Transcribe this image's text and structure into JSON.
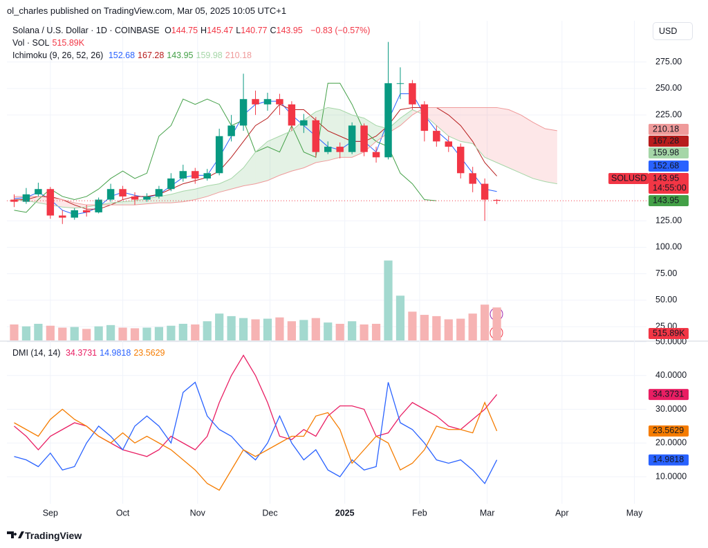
{
  "header": {
    "publisher": "ol_charles published on TradingView.com, Mar 05, 2025 10:05 UTC+1",
    "currency": "USD",
    "brand": "TradingView"
  },
  "chart_data": [
    {
      "type": "candlestick",
      "title": "Solana / U.S. Dollar · 1D · COINBASE",
      "symbol": "SOLUSD",
      "countdown": "14:55:00",
      "ohlc_letters": [
        "O",
        "H",
        "L",
        "C"
      ],
      "change": "−0.83 (−0.57%)",
      "x": [
        "2024-08-17",
        "2024-08-22",
        "2024-08-27",
        "2024-09-01",
        "2024-09-06",
        "2024-09-11",
        "2024-09-16",
        "2024-09-21",
        "2024-09-26",
        "2024-10-01",
        "2024-10-06",
        "2024-10-11",
        "2024-10-16",
        "2024-10-21",
        "2024-10-26",
        "2024-10-31",
        "2024-11-05",
        "2024-11-10",
        "2024-11-15",
        "2024-11-20",
        "2024-11-25",
        "2024-11-30",
        "2024-12-05",
        "2024-12-10",
        "2024-12-15",
        "2024-12-20",
        "2024-12-25",
        "2024-12-30",
        "2025-01-04",
        "2025-01-09",
        "2025-01-14",
        "2025-01-19",
        "2025-01-24",
        "2025-01-29",
        "2025-02-03",
        "2025-02-08",
        "2025-02-13",
        "2025-02-18",
        "2025-02-23",
        "2025-02-28",
        "2025-03-05"
      ],
      "open": [
        145,
        143,
        150,
        155,
        130,
        128,
        135,
        133,
        145,
        155,
        148,
        145,
        148,
        155,
        165,
        172,
        165,
        170,
        205,
        215,
        240,
        235,
        240,
        235,
        215,
        220,
        190,
        195,
        190,
        215,
        190,
        185,
        255,
        255,
        235,
        210,
        200,
        195,
        170,
        160,
        144.75
      ],
      "high": [
        150,
        156,
        161,
        157,
        135,
        137,
        140,
        147,
        160,
        158,
        152,
        151,
        158,
        170,
        178,
        175,
        174,
        212,
        225,
        264,
        248,
        246,
        245,
        238,
        226,
        223,
        200,
        199,
        218,
        217,
        195,
        294,
        270,
        258,
        238,
        215,
        205,
        198,
        176,
        165,
        145.47
      ],
      "low": [
        138,
        141,
        148,
        127,
        122,
        126,
        129,
        132,
        143,
        145,
        140,
        143,
        146,
        153,
        162,
        160,
        163,
        168,
        200,
        210,
        225,
        229,
        225,
        210,
        208,
        185,
        188,
        184,
        188,
        186,
        180,
        183,
        240,
        230,
        200,
        195,
        190,
        165,
        152,
        125,
        140.77
      ],
      "close": [
        143,
        150,
        155,
        130,
        128,
        135,
        133,
        145,
        155,
        148,
        145,
        148,
        155,
        165,
        172,
        165,
        170,
        205,
        215,
        240,
        235,
        240,
        235,
        215,
        220,
        190,
        195,
        190,
        215,
        190,
        185,
        255,
        255,
        235,
        210,
        200,
        195,
        170,
        160,
        145,
        143.95
      ],
      "up_color": "#089981",
      "down_color": "#f23645",
      "price_line_color": "#f23645",
      "xlim": [
        "2024-08-14",
        "2025-05-06"
      ],
      "ylim": [
        12,
        314
      ],
      "yticks": [
        {
          "value": 275,
          "label": "275.00"
        },
        {
          "value": 250,
          "label": "250.00"
        },
        {
          "value": 225,
          "label": "225.00"
        },
        {
          "value": 125,
          "label": "125.00"
        },
        {
          "value": 100,
          "label": "100.00"
        },
        {
          "value": 75,
          "label": "75.00"
        },
        {
          "value": 50,
          "label": "50.00"
        },
        {
          "value": 25,
          "label": "25.00"
        }
      ],
      "grid": true,
      "volume": {
        "name": "Vol · SOL",
        "last_label": "515.89K",
        "ylim": [
          0,
          5000000
        ],
        "up_color": "#a3d9cf",
        "down_color": "#f6b3b3",
        "values": [
          250000,
          220000,
          260000,
          230000,
          200000,
          210000,
          180000,
          220000,
          240000,
          200000,
          190000,
          200000,
          210000,
          230000,
          260000,
          250000,
          300000,
          420000,
          380000,
          350000,
          330000,
          340000,
          360000,
          300000,
          320000,
          350000,
          280000,
          260000,
          300000,
          250000,
          260000,
          1250000,
          700000,
          450000,
          400000,
          380000,
          330000,
          340000,
          420000,
          560000,
          515890
        ]
      },
      "ichimoku": {
        "name": "Ichimoku (9, 26, 52, 26)",
        "cloud_up": "rgba(67,160,71,0.14)",
        "cloud_down": "rgba(242,54,69,0.12)",
        "series": [
          {
            "color": "#2962ff",
            "values": [
              146,
              147,
              152,
              145,
              135,
              131,
              133,
              138,
              148,
              152,
              149,
              147,
              150,
              158,
              166,
              168,
              168,
              185,
              205,
              225,
              235,
              238,
              238,
              225,
              215,
              205,
              195,
              192,
              200,
              200,
              190,
              220,
              245,
              245,
              225,
              210,
              200,
              185,
              170,
              155,
              152.68
            ]
          },
          {
            "color": "#b71c1c",
            "values": [
              145,
              145,
              148,
              148,
              145,
              140,
              136,
              136,
              140,
              145,
              148,
              148,
              150,
              155,
              160,
              163,
              166,
              172,
              185,
              200,
              215,
              222,
              235,
              230,
              230,
              220,
              210,
              205,
              200,
              200,
              205,
              215,
              230,
              232,
              232,
              232,
              225,
              215,
              200,
              180,
              167.28
            ]
          },
          {
            "color": "#43a047",
            "x": [
              "2024-08-17",
              "2024-08-22",
              "2024-08-27",
              "2024-09-01",
              "2024-09-06",
              "2024-09-11",
              "2024-09-16",
              "2024-09-21",
              "2024-09-26",
              "2024-10-01",
              "2024-10-06",
              "2024-10-11",
              "2024-10-16",
              "2024-10-21",
              "2024-10-26",
              "2024-10-31",
              "2024-11-05",
              "2024-11-10",
              "2024-11-15",
              "2024-11-20",
              "2024-11-25",
              "2024-11-30",
              "2024-12-05",
              "2024-12-10",
              "2024-12-15",
              "2024-12-20",
              "2024-12-25",
              "2024-12-30",
              "2025-01-04",
              "2025-01-09",
              "2025-01-14",
              "2025-01-19",
              "2025-01-24",
              "2025-01-29",
              "2025-02-03",
              "2025-02-08"
            ],
            "values": [
              135,
              133,
              145,
              155,
              148,
              145,
              148,
              155,
              165,
              172,
              165,
              170,
              205,
              215,
              240,
              235,
              240,
              235,
              215,
              220,
              190,
              195,
              190,
              215,
              190,
              185,
              255,
              255,
              235,
              210,
              200,
              195,
              170,
              160,
              145,
              143.95
            ]
          },
          {
            "color": "#a5d6a7",
            "x": [
              "2024-08-17",
              "2024-08-22",
              "2024-08-27",
              "2024-09-01",
              "2024-09-06",
              "2024-09-11",
              "2024-09-16",
              "2024-09-21",
              "2024-09-26",
              "2024-10-01",
              "2024-10-06",
              "2024-10-11",
              "2024-10-16",
              "2024-10-21",
              "2024-10-26",
              "2024-10-31",
              "2024-11-05",
              "2024-11-10",
              "2024-11-15",
              "2024-11-20",
              "2024-11-25",
              "2024-11-30",
              "2024-12-05",
              "2024-12-10",
              "2024-12-15",
              "2024-12-20",
              "2024-12-25",
              "2024-12-30",
              "2025-01-04",
              "2025-01-09",
              "2025-01-14",
              "2025-01-19",
              "2025-01-24",
              "2025-01-29",
              "2025-02-03",
              "2025-02-08",
              "2025-02-13",
              "2025-02-18",
              "2025-02-23",
              "2025-02-28",
              "2025-03-05",
              "2025-03-10",
              "2025-03-15",
              "2025-03-20",
              "2025-03-25",
              "2025-03-30"
            ],
            "values": [
              145,
              144,
              142,
              140,
              138,
              137,
              138,
              140,
              142,
              143,
              144,
              146,
              148,
              150,
              153,
              155,
              158,
              160,
              165,
              175,
              190,
              200,
              205,
              210,
              220,
              228,
              232,
              230,
              225,
              222,
              215,
              212,
              222,
              230,
              225,
              215,
              205,
              200,
              198,
              185,
              180,
              175,
              170,
              165,
              162,
              159.98
            ]
          },
          {
            "color": "#ef9a9a",
            "x": [
              "2024-08-17",
              "2024-08-22",
              "2024-08-27",
              "2024-09-01",
              "2024-09-06",
              "2024-09-11",
              "2024-09-16",
              "2024-09-21",
              "2024-09-26",
              "2024-10-01",
              "2024-10-06",
              "2024-10-11",
              "2024-10-16",
              "2024-10-21",
              "2024-10-26",
              "2024-10-31",
              "2024-11-05",
              "2024-11-10",
              "2024-11-15",
              "2024-11-20",
              "2024-11-25",
              "2024-11-30",
              "2024-12-05",
              "2024-12-10",
              "2024-12-15",
              "2024-12-20",
              "2024-12-25",
              "2024-12-30",
              "2025-01-04",
              "2025-01-09",
              "2025-01-14",
              "2025-01-19",
              "2025-01-24",
              "2025-01-29",
              "2025-02-03",
              "2025-02-08",
              "2025-02-13",
              "2025-02-18",
              "2025-02-23",
              "2025-02-28",
              "2025-03-05",
              "2025-03-10",
              "2025-03-15",
              "2025-03-20",
              "2025-03-25",
              "2025-03-30"
            ],
            "values": [
              148,
              148,
              148,
              147,
              145,
              142,
              140,
              140,
              140,
              140,
              140,
              141,
              142,
              142,
              143,
              145,
              148,
              152,
              155,
              158,
              160,
              163,
              168,
              172,
              175,
              180,
              182,
              185,
              185,
              190,
              200,
              208,
              215,
              225,
              232,
              232,
              232,
              232,
              232,
              232,
              232,
              230,
              225,
              218,
              212,
              210.18
            ]
          }
        ]
      }
    },
    {
      "type": "line",
      "title": "DMI (14, 14)",
      "x": [
        "2024-08-17",
        "2024-08-22",
        "2024-08-27",
        "2024-09-01",
        "2024-09-06",
        "2024-09-11",
        "2024-09-16",
        "2024-09-21",
        "2024-09-26",
        "2024-10-01",
        "2024-10-06",
        "2024-10-11",
        "2024-10-16",
        "2024-10-21",
        "2024-10-26",
        "2024-10-31",
        "2024-11-05",
        "2024-11-10",
        "2024-11-15",
        "2024-11-20",
        "2024-11-25",
        "2024-11-30",
        "2024-12-05",
        "2024-12-10",
        "2024-12-15",
        "2024-12-20",
        "2024-12-25",
        "2024-12-30",
        "2025-01-04",
        "2025-01-09",
        "2025-01-14",
        "2025-01-19",
        "2025-01-24",
        "2025-01-29",
        "2025-02-03",
        "2025-02-08",
        "2025-02-13",
        "2025-02-18",
        "2025-02-23",
        "2025-02-28",
        "2025-03-05"
      ],
      "series": [
        {
          "color": "#e91e63",
          "values": [
            25,
            22,
            18,
            22,
            24,
            26,
            25,
            22,
            20,
            18,
            17,
            16,
            18,
            22,
            20,
            18,
            22,
            32,
            40,
            46,
            40,
            32,
            22,
            21,
            24,
            22,
            28,
            31,
            31,
            30,
            22,
            23,
            28,
            32,
            30,
            28,
            25,
            24,
            27,
            30,
            34.3731
          ]
        },
        {
          "color": "#2962ff",
          "values": [
            16,
            15,
            13,
            17,
            12,
            13,
            20,
            25,
            22,
            18,
            25,
            28,
            25,
            20,
            35,
            38,
            28,
            24,
            22,
            18,
            15,
            20,
            28,
            20,
            15,
            18,
            12,
            10,
            15,
            12,
            13,
            38,
            26,
            24,
            20,
            15,
            14,
            15,
            12,
            8,
            14.9818
          ]
        },
        {
          "color": "#f57c00",
          "values": [
            26,
            24,
            22,
            27,
            30,
            27,
            25,
            22,
            20,
            23,
            20,
            22,
            20,
            18,
            15,
            12,
            8,
            6,
            12,
            18,
            16,
            18,
            20,
            22,
            22,
            28,
            29,
            24,
            14,
            18,
            22,
            20,
            12,
            14,
            18,
            25,
            24,
            24,
            23,
            32,
            23.5629
          ]
        }
      ],
      "xlim": [
        "2024-08-14",
        "2025-05-06"
      ],
      "ylim": [
        2,
        50
      ],
      "yticks": [
        {
          "value": 50,
          "label": "50.0000"
        },
        {
          "value": 40,
          "label": "40.0000"
        },
        {
          "value": 30,
          "label": "30.0000"
        },
        {
          "value": 20,
          "label": "20.0000"
        },
        {
          "value": 10,
          "label": "10.0000"
        }
      ],
      "xticks": [
        {
          "value": "2024-09-01",
          "label": "Sep"
        },
        {
          "value": "2024-10-01",
          "label": "Oct"
        },
        {
          "value": "2024-11-01",
          "label": "Nov"
        },
        {
          "value": "2024-12-01",
          "label": "Dec"
        },
        {
          "value": "2025-01-01",
          "label": "2025"
        },
        {
          "value": "2025-02-01",
          "label": "Feb"
        },
        {
          "value": "2025-03-01",
          "label": "Mar"
        },
        {
          "value": "2025-04-01",
          "label": "Apr"
        },
        {
          "value": "2025-05-01",
          "label": "May"
        }
      ],
      "grid": true
    }
  ]
}
